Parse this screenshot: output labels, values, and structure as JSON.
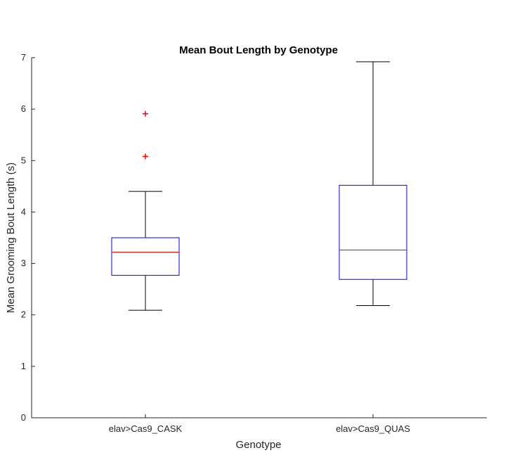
{
  "chart_data": {
    "type": "box",
    "title": "Mean Bout Length by Genotype",
    "xlabel": "Genotype",
    "ylabel": "Mean Grooming Bout Length (s)",
    "ylim": [
      0,
      7
    ],
    "yticks": [
      0,
      1,
      2,
      3,
      4,
      5,
      6,
      7
    ],
    "grid": false,
    "categories": [
      "elav>Cas9_CASK",
      "elav>Cas9_QUAS"
    ],
    "boxes": [
      {
        "category": "elav>Cas9_CASK",
        "whisker_low": 2.09,
        "q1": 2.77,
        "median": 3.22,
        "q3": 3.5,
        "whisker_high": 4.4,
        "outliers": [
          5.08,
          5.91
        ]
      },
      {
        "category": "elav>Cas9_QUAS",
        "whisker_low": 2.18,
        "q1": 2.69,
        "median": 3.26,
        "q3": 4.52,
        "whisker_high": 6.92,
        "outliers": []
      }
    ],
    "colors": {
      "box": "#0000ff",
      "median": "#ff0000",
      "whisker": "#000000",
      "outlier": "#ff0000",
      "axis": "#262626"
    }
  }
}
